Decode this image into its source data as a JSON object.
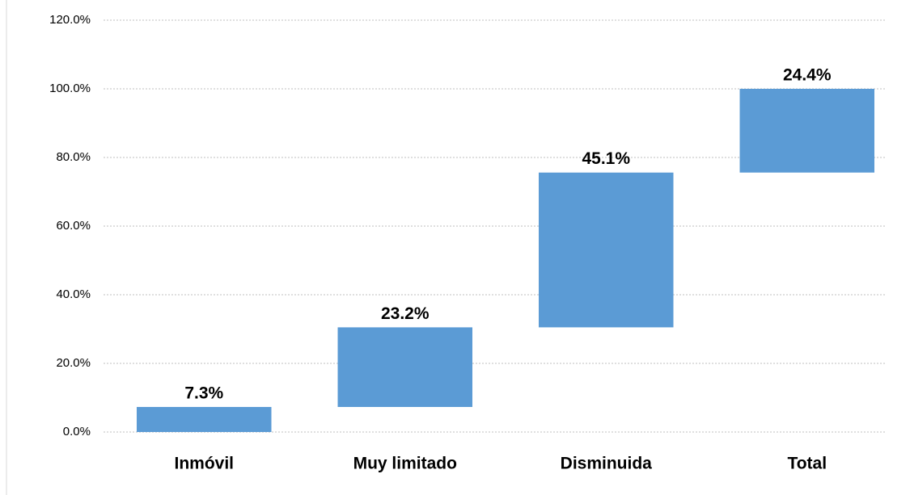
{
  "chart_data": {
    "type": "waterfall",
    "categories": [
      "Inmóvil",
      "Muy limitado",
      "Disminuida",
      "Total"
    ],
    "values": [
      7.3,
      23.2,
      45.1,
      24.4
    ],
    "value_labels": [
      "7.3%",
      "23.2%",
      "45.1%",
      "24.4%"
    ],
    "color": "#5b9bd5",
    "ylim": [
      0,
      120
    ],
    "yticks": [
      {
        "value": 0,
        "label": "0.0%"
      },
      {
        "value": 20,
        "label": "20.0%"
      },
      {
        "value": 40,
        "label": "40.0%"
      },
      {
        "value": 60,
        "label": "60.0%"
      },
      {
        "value": 80,
        "label": "80.0%"
      },
      {
        "value": 100,
        "label": "100.0%"
      },
      {
        "value": 120,
        "label": "120.0%"
      }
    ],
    "grid": true
  }
}
